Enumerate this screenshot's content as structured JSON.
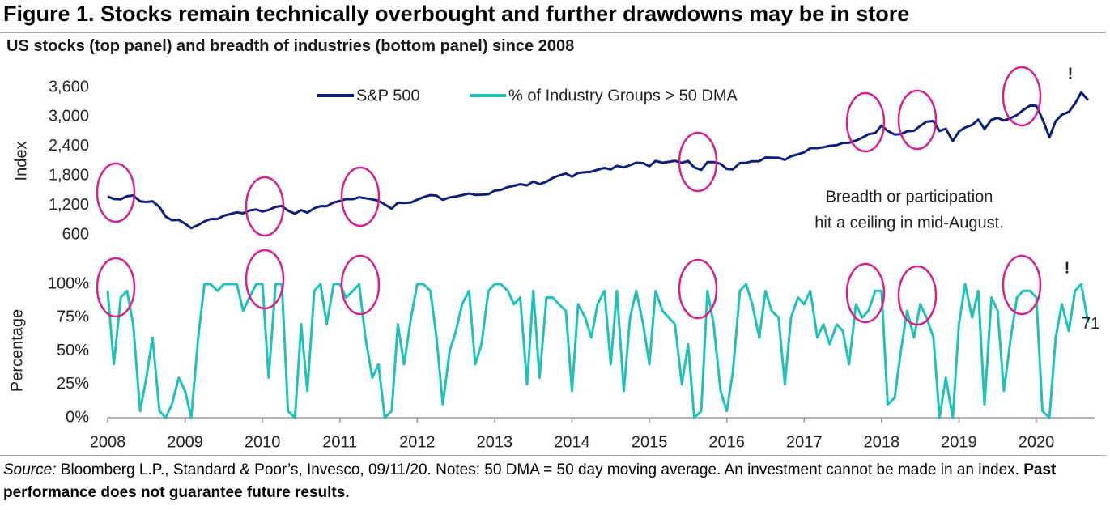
{
  "title": "Figure 1. Stocks remain technically overbought and further drawdowns may be in store",
  "subtitle": "US stocks (top panel) and breadth of industries (bottom panel) since 2008",
  "source_label": "Source:",
  "source_text": "Bloomberg L.P., Standard & Poor’s, Invesco, 09/11/20. Notes: 50 DMA = 50 day moving average. An investment cannot be made in an index.",
  "disclaimer": "Past performance does not guarantee future results.",
  "chart_data": {
    "type": "line",
    "ylabel": "Index",
    "y2label": "Percentage",
    "annotation": [
      "Breadth or participation",
      "hit a ceiling in mid-August."
    ],
    "exclamations": [
      "!",
      "!"
    ],
    "xlim": [
      2008,
      2020.75
    ],
    "xticks": [
      2008,
      2009,
      2010,
      2011,
      2012,
      2013,
      2014,
      2015,
      2016,
      2017,
      2018,
      2019,
      2020
    ],
    "ylim": [
      600,
      3600
    ],
    "yticks": [
      {
        "value": 600,
        "label": "600"
      },
      {
        "value": 1200,
        "label": "1,200"
      },
      {
        "value": 1800,
        "label": "1,800"
      },
      {
        "value": 2400,
        "label": "2,400"
      },
      {
        "value": 3000,
        "label": "3,000"
      },
      {
        "value": 3600,
        "label": "3,600"
      }
    ],
    "y2lim": [
      0,
      100
    ],
    "y2ticks": [
      {
        "value": 0,
        "label": "0%"
      },
      {
        "value": 25,
        "label": "25%"
      },
      {
        "value": 50,
        "label": "50%"
      },
      {
        "value": 75,
        "label": "75%"
      },
      {
        "value": 100,
        "label": "100%"
      }
    ],
    "grid": false,
    "x": [
      2008,
      2008.08,
      2008.17,
      2008.25,
      2008.33,
      2008.42,
      2008.5,
      2008.58,
      2008.67,
      2008.75,
      2008.83,
      2008.92,
      2009,
      2009.08,
      2009.17,
      2009.25,
      2009.33,
      2009.42,
      2009.5,
      2009.58,
      2009.67,
      2009.75,
      2009.83,
      2009.92,
      2010,
      2010.08,
      2010.17,
      2010.25,
      2010.33,
      2010.42,
      2010.5,
      2010.58,
      2010.67,
      2010.75,
      2010.83,
      2010.92,
      2011,
      2011.08,
      2011.17,
      2011.25,
      2011.33,
      2011.42,
      2011.5,
      2011.58,
      2011.67,
      2011.75,
      2011.83,
      2011.92,
      2012,
      2012.08,
      2012.17,
      2012.25,
      2012.33,
      2012.42,
      2012.5,
      2012.58,
      2012.67,
      2012.75,
      2012.83,
      2012.92,
      2013,
      2013.08,
      2013.17,
      2013.25,
      2013.33,
      2013.42,
      2013.5,
      2013.58,
      2013.67,
      2013.75,
      2013.83,
      2013.92,
      2014,
      2014.08,
      2014.17,
      2014.25,
      2014.33,
      2014.42,
      2014.5,
      2014.58,
      2014.67,
      2014.75,
      2014.83,
      2014.92,
      2015,
      2015.08,
      2015.17,
      2015.25,
      2015.33,
      2015.42,
      2015.5,
      2015.58,
      2015.67,
      2015.75,
      2015.83,
      2015.92,
      2016,
      2016.08,
      2016.17,
      2016.25,
      2016.33,
      2016.42,
      2016.5,
      2016.58,
      2016.67,
      2016.75,
      2016.83,
      2016.92,
      2017,
      2017.08,
      2017.17,
      2017.25,
      2017.33,
      2017.42,
      2017.5,
      2017.58,
      2017.67,
      2017.75,
      2017.83,
      2017.92,
      2018,
      2018.08,
      2018.17,
      2018.25,
      2018.33,
      2018.42,
      2018.5,
      2018.58,
      2018.67,
      2018.75,
      2018.83,
      2018.92,
      2019,
      2019.08,
      2019.17,
      2019.25,
      2019.33,
      2019.42,
      2019.5,
      2019.58,
      2019.67,
      2019.75,
      2019.83,
      2019.92,
      2020,
      2020.08,
      2020.17,
      2020.25,
      2020.33,
      2020.42,
      2020.5,
      2020.58,
      2020.67
    ],
    "series": [
      {
        "name": "S&P 500",
        "color": "#0d1f7a",
        "axis": "y",
        "values": [
          1378,
          1330,
          1322,
          1385,
          1400,
          1280,
          1267,
          1282,
          1166,
          968,
          896,
          903,
          825,
          735,
          797,
          872,
          919,
          919,
          987,
          1020,
          1057,
          1036,
          1095,
          1115,
          1073,
          1104,
          1169,
          1186,
          1089,
          1030,
          1101,
          1049,
          1141,
          1183,
          1180,
          1257,
          1286,
          1327,
          1325,
          1363,
          1345,
          1320,
          1292,
          1218,
          1131,
          1253,
          1246,
          1257,
          1312,
          1365,
          1408,
          1397,
          1310,
          1362,
          1379,
          1406,
          1440,
          1412,
          1416,
          1426,
          1498,
          1514,
          1569,
          1597,
          1630,
          1606,
          1685,
          1632,
          1681,
          1756,
          1805,
          1848,
          1782,
          1859,
          1872,
          1883,
          1923,
          1960,
          1930,
          2003,
          1972,
          2018,
          2067,
          2058,
          1995,
          2104,
          2067,
          2085,
          2107,
          2063,
          2104,
          1972,
          1920,
          2079,
          2080,
          2044,
          1940,
          1932,
          2060,
          2065,
          2097,
          2099,
          2174,
          2171,
          2168,
          2126,
          2199,
          2239,
          2279,
          2364,
          2363,
          2384,
          2412,
          2423,
          2470,
          2472,
          2519,
          2575,
          2648,
          2674,
          2824,
          2714,
          2641,
          2648,
          2705,
          2718,
          2816,
          2902,
          2914,
          2712,
          2760,
          2507,
          2704,
          2784,
          2834,
          2946,
          2752,
          2942,
          2980,
          2926,
          2977,
          3038,
          3141,
          3231,
          3226,
          2954,
          2585,
          2912,
          3044,
          3100,
          3271,
          3500,
          3340
        ]
      },
      {
        "name": "% of Industry Groups > 50 DMA",
        "color": "#1fc1b8",
        "axis": "y2",
        "values": [
          95,
          40,
          90,
          95,
          70,
          5,
          30,
          60,
          5,
          0,
          10,
          30,
          20,
          0,
          60,
          100,
          100,
          95,
          100,
          100,
          100,
          80,
          90,
          100,
          100,
          30,
          100,
          100,
          5,
          0,
          70,
          20,
          95,
          100,
          70,
          100,
          100,
          90,
          95,
          100,
          60,
          30,
          40,
          0,
          5,
          70,
          40,
          75,
          100,
          100,
          95,
          60,
          10,
          50,
          65,
          85,
          95,
          40,
          55,
          95,
          100,
          100,
          95,
          85,
          90,
          25,
          95,
          30,
          90,
          90,
          85,
          80,
          20,
          85,
          75,
          60,
          85,
          95,
          40,
          95,
          20,
          75,
          95,
          70,
          40,
          95,
          80,
          75,
          70,
          25,
          55,
          0,
          5,
          95,
          70,
          20,
          5,
          35,
          95,
          100,
          85,
          60,
          95,
          80,
          75,
          25,
          75,
          90,
          85,
          95,
          60,
          70,
          55,
          70,
          65,
          40,
          85,
          75,
          80,
          95,
          95,
          10,
          15,
          50,
          80,
          60,
          85,
          75,
          60,
          0,
          30,
          0,
          70,
          100,
          75,
          95,
          10,
          90,
          80,
          20,
          60,
          90,
          95,
          95,
          90,
          5,
          0,
          60,
          85,
          65,
          95,
          100,
          71
        ]
      }
    ]
  }
}
